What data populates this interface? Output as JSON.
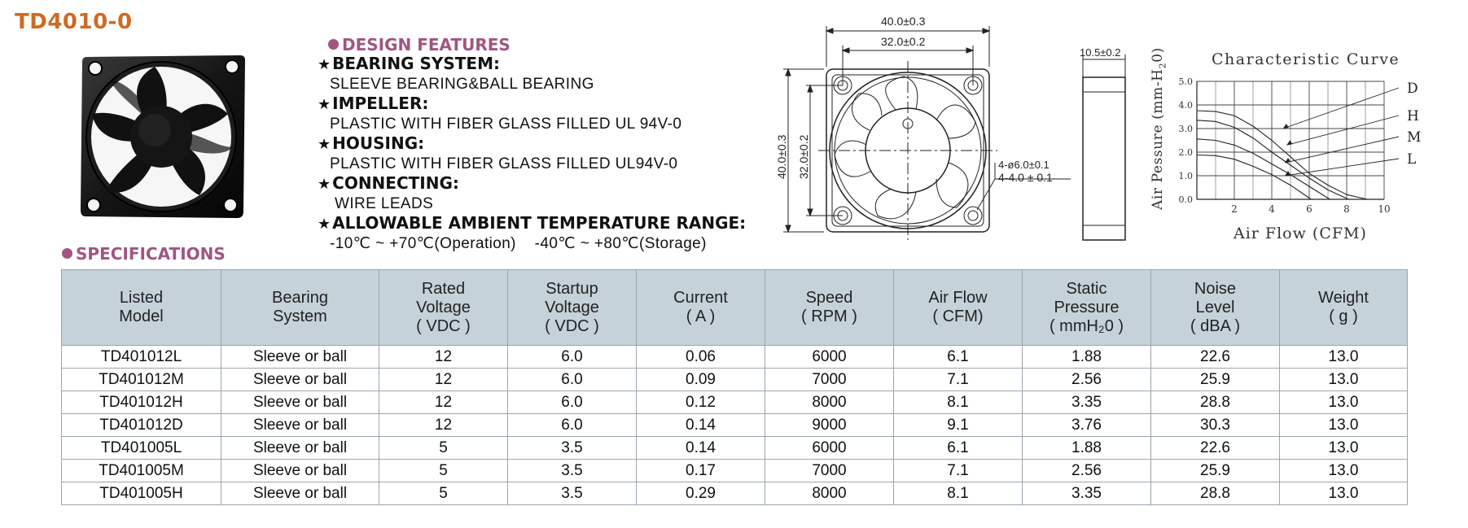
{
  "product_title": "TD4010-0",
  "design_features": {
    "heading": "DESIGN FEATURES",
    "items": [
      {
        "label": "BEARING SYSTEM:",
        "value": "SLEEVE BEARING&BALL BEARING"
      },
      {
        "label": "IMPELLER:",
        "value": "PLASTIC WITH FIBER GLASS FILLED UL 94V-0"
      },
      {
        "label": "HOUSING:",
        "value": "PLASTIC WITH FIBER GLASS FILLED UL94V-0"
      },
      {
        "label": "CONNECTING:",
        "value": "WIRE LEADS"
      },
      {
        "label": "ALLOWABLE AMBIENT TEMPERATURE RANGE:",
        "value": "-10℃ ~ +70℃(Operation)    -40℃ ~ +80℃(Storage)"
      }
    ]
  },
  "drawing": {
    "outer_width": "40.0±0.3",
    "hole_spacing": "32.0±0.2",
    "outer_height": "40.0±0.3",
    "hole_spacing_vertical": "32.0±0.2",
    "hole_diameter": "4-ø6.0±0.1",
    "hole_size": "4-4.0 ± 0.1",
    "thickness": "10.5±0.2"
  },
  "specifications": {
    "heading": "SPECIFICATIONS",
    "columns": [
      [
        "Listed",
        "Model"
      ],
      [
        "Bearing",
        "System"
      ],
      [
        "Rated",
        "Voltage",
        "( VDC )"
      ],
      [
        "Startup",
        "Voltage",
        "( VDC )"
      ],
      [
        "Current",
        "( A )"
      ],
      [
        "Speed",
        "( RPM )"
      ],
      [
        "Air Flow",
        "( CFM)"
      ],
      [
        "Static",
        "Pressure",
        "( mmH₂0 )"
      ],
      [
        "Noise",
        "Level",
        "( dBA )"
      ],
      [
        "Weight",
        "( g )"
      ]
    ],
    "rows": [
      [
        "TD401012L",
        "Sleeve or ball",
        "12",
        "6.0",
        "0.06",
        "6000",
        "6.1",
        "1.88",
        "22.6",
        "13.0"
      ],
      [
        "TD401012M",
        "Sleeve or ball",
        "12",
        "6.0",
        "0.09",
        "7000",
        "7.1",
        "2.56",
        "25.9",
        "13.0"
      ],
      [
        "TD401012H",
        "Sleeve or ball",
        "12",
        "6.0",
        "0.12",
        "8000",
        "8.1",
        "3.35",
        "28.8",
        "13.0"
      ],
      [
        "TD401012D",
        "Sleeve or ball",
        "12",
        "6.0",
        "0.14",
        "9000",
        "9.1",
        "3.76",
        "30.3",
        "13.0"
      ],
      [
        "TD401005L",
        "Sleeve or ball",
        "5",
        "3.5",
        "0.14",
        "6000",
        "6.1",
        "1.88",
        "22.6",
        "13.0"
      ],
      [
        "TD401005M",
        "Sleeve or ball",
        "5",
        "3.5",
        "0.17",
        "7000",
        "7.1",
        "2.56",
        "25.9",
        "13.0"
      ],
      [
        "TD401005H",
        "Sleeve or ball",
        "5",
        "3.5",
        "0.29",
        "8000",
        "8.1",
        "3.35",
        "28.8",
        "13.0"
      ]
    ]
  },
  "chart_data": {
    "type": "line",
    "title": "Characteristic Curve",
    "xlabel": "Air Flow (CFM)",
    "ylabel_main": "Air Pessure (mm-H",
    "ylabel_sub": "2",
    "ylabel_end": "0)",
    "xlim": [
      0,
      10
    ],
    "ylim": [
      0,
      5
    ],
    "x_ticks": [
      2,
      4,
      6,
      8,
      10
    ],
    "y_ticks": [
      "0.0",
      "1.0",
      "2.0",
      "3.0",
      "4.0",
      "5.0"
    ],
    "grid": true,
    "series": [
      {
        "name": "D",
        "points": [
          [
            0,
            3.76
          ],
          [
            1,
            3.72
          ],
          [
            2,
            3.55
          ],
          [
            3,
            3.1
          ],
          [
            4,
            2.5
          ],
          [
            5,
            1.8
          ],
          [
            6,
            1.1
          ],
          [
            7,
            0.6
          ],
          [
            8,
            0.2
          ],
          [
            9.1,
            0
          ]
        ]
      },
      {
        "name": "H",
        "points": [
          [
            0,
            3.35
          ],
          [
            1,
            3.3
          ],
          [
            2,
            3.05
          ],
          [
            3,
            2.6
          ],
          [
            4,
            2.0
          ],
          [
            5,
            1.45
          ],
          [
            6,
            0.9
          ],
          [
            7,
            0.4
          ],
          [
            8.1,
            0
          ]
        ]
      },
      {
        "name": "M",
        "points": [
          [
            0,
            2.56
          ],
          [
            1,
            2.5
          ],
          [
            2,
            2.3
          ],
          [
            3,
            1.95
          ],
          [
            4,
            1.5
          ],
          [
            5,
            1.05
          ],
          [
            6,
            0.55
          ],
          [
            7.1,
            0
          ]
        ]
      },
      {
        "name": "L",
        "points": [
          [
            0,
            1.88
          ],
          [
            1,
            1.85
          ],
          [
            2,
            1.7
          ],
          [
            3,
            1.4
          ],
          [
            4,
            1.05
          ],
          [
            5,
            0.6
          ],
          [
            6.1,
            0
          ]
        ]
      }
    ],
    "leader_targets": {
      "D": [
        4.6,
        3.0
      ],
      "H": [
        4.8,
        2.3
      ],
      "M": [
        4.7,
        1.55
      ],
      "L": [
        4.7,
        1.0
      ]
    }
  }
}
